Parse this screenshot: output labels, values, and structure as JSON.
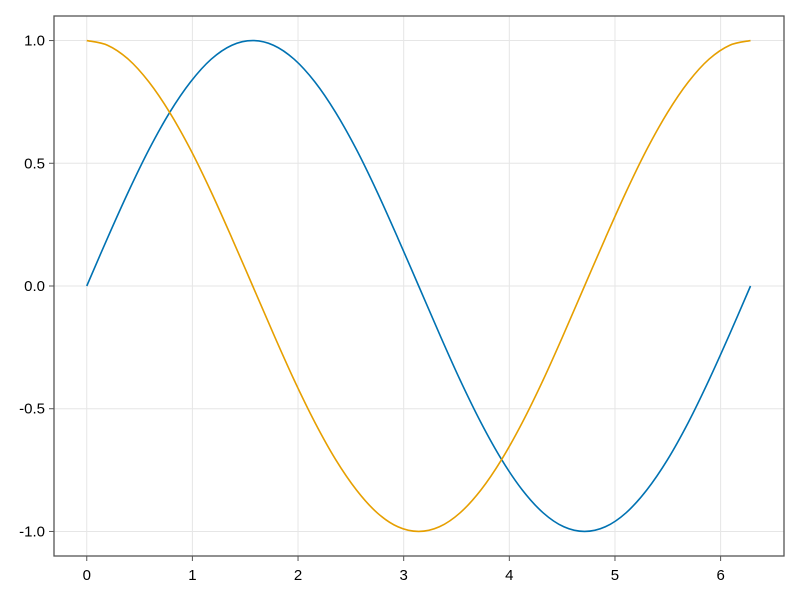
{
  "chart_data": {
    "type": "line",
    "title": "",
    "xlabel": "",
    "ylabel": "",
    "xlim": [
      -0.31,
      6.6
    ],
    "ylim": [
      -1.1,
      1.1
    ],
    "grid": true,
    "x_ticks": [
      "0",
      "1",
      "2",
      "3",
      "4",
      "5",
      "6"
    ],
    "x_tick_values": [
      0,
      1,
      2,
      3,
      4,
      5,
      6
    ],
    "y_ticks": [
      "-1.0",
      "-0.5",
      "0.0",
      "0.5",
      "1.0"
    ],
    "y_tick_values": [
      -1,
      -0.5,
      0,
      0.5,
      1
    ],
    "x": [
      0,
      0.196,
      0.393,
      0.589,
      0.785,
      0.982,
      1.178,
      1.374,
      1.571,
      1.767,
      1.963,
      2.16,
      2.356,
      2.553,
      2.749,
      2.945,
      3.142,
      3.338,
      3.534,
      3.731,
      3.927,
      4.123,
      4.32,
      4.516,
      4.712,
      4.909,
      5.105,
      5.301,
      5.498,
      5.694,
      5.89,
      6.087,
      6.283
    ],
    "series": [
      {
        "color": "#0072B2",
        "values": [
          0,
          0.195,
          0.383,
          0.556,
          0.707,
          0.831,
          0.924,
          0.981,
          1,
          0.981,
          0.924,
          0.831,
          0.707,
          0.556,
          0.383,
          0.195,
          0,
          -0.195,
          -0.383,
          -0.556,
          -0.707,
          -0.831,
          -0.924,
          -0.981,
          -1,
          -0.981,
          -0.924,
          -0.831,
          -0.707,
          -0.556,
          -0.383,
          -0.195,
          0
        ]
      },
      {
        "color": "#E69F00",
        "values": [
          1,
          0.981,
          0.924,
          0.831,
          0.707,
          0.556,
          0.383,
          0.195,
          0,
          -0.195,
          -0.383,
          -0.556,
          -0.707,
          -0.831,
          -0.924,
          -0.981,
          -1,
          -0.981,
          -0.924,
          -0.831,
          -0.707,
          -0.556,
          -0.383,
          -0.195,
          0,
          0.195,
          0.383,
          0.556,
          0.707,
          0.831,
          0.924,
          0.981,
          1
        ]
      }
    ]
  }
}
